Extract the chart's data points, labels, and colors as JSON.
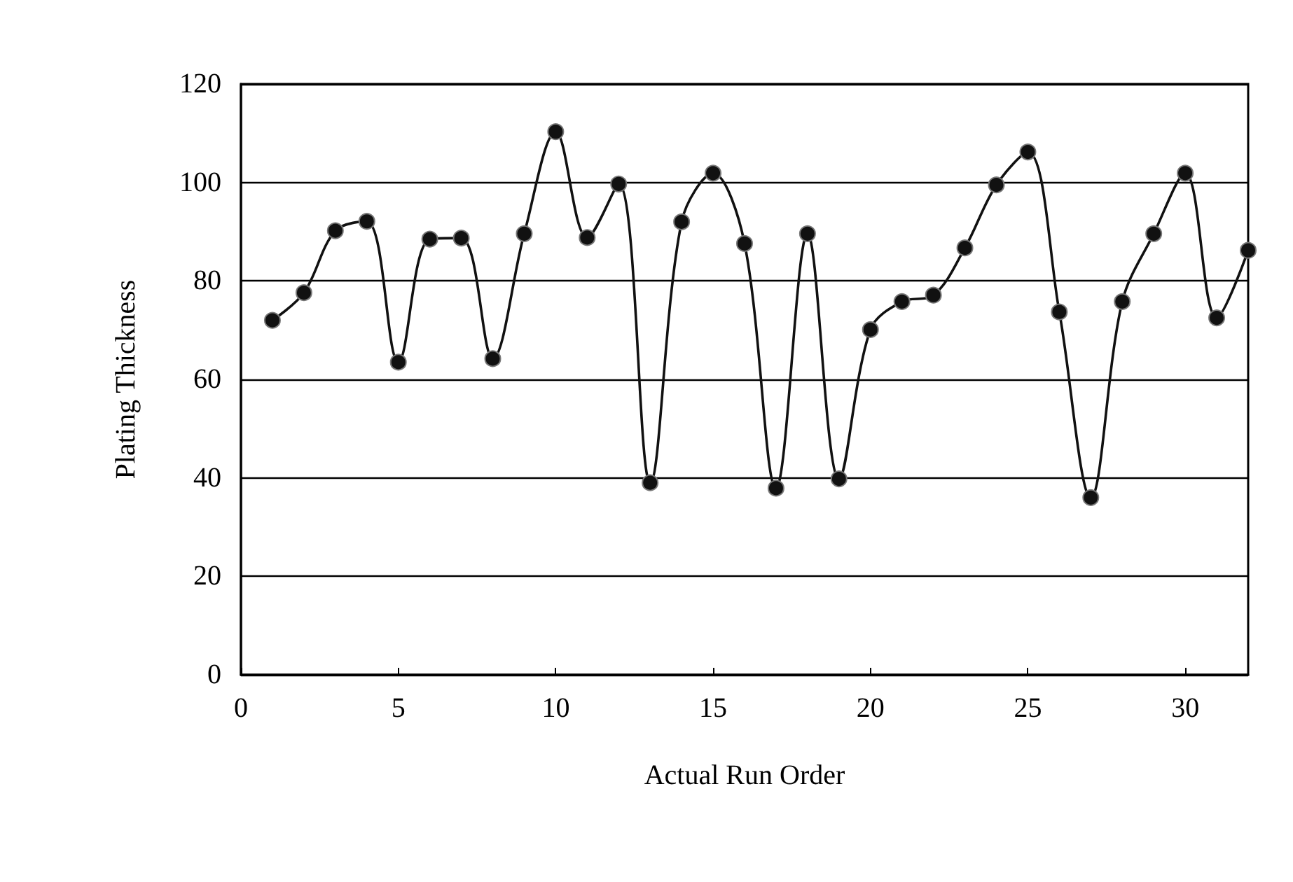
{
  "chart_data": {
    "type": "line",
    "xlabel": "Actual Run Order",
    "ylabel": "Plating Thickness",
    "x": [
      1,
      2,
      3,
      4,
      5,
      6,
      7,
      8,
      9,
      10,
      11,
      12,
      13,
      14,
      15,
      16,
      17,
      18,
      19,
      20,
      21,
      22,
      23,
      24,
      25,
      26,
      27,
      28,
      29,
      30,
      31,
      32
    ],
    "series": [
      {
        "color": "#111111",
        "values": [
          72,
          77.6,
          90.2,
          92.1,
          63.5,
          88.5,
          88.7,
          64.2,
          89.6,
          110.3,
          88.8,
          99.7,
          39,
          92,
          101.9,
          87.6,
          37.9,
          89.6,
          39.8,
          70.1,
          75.8,
          77.1,
          86.7,
          99.5,
          106.2,
          73.7,
          36,
          75.8,
          89.6,
          101.9,
          72.5,
          86.2
        ]
      }
    ],
    "xlim": [
      0,
      32
    ],
    "xticks": [
      0,
      5,
      10,
      15,
      20,
      25,
      30
    ],
    "ylim": [
      0,
      120
    ],
    "yticks": [
      0,
      20,
      40,
      60,
      80,
      100,
      120
    ],
    "grid": "y",
    "marker": "circle",
    "line_style": "solid"
  }
}
